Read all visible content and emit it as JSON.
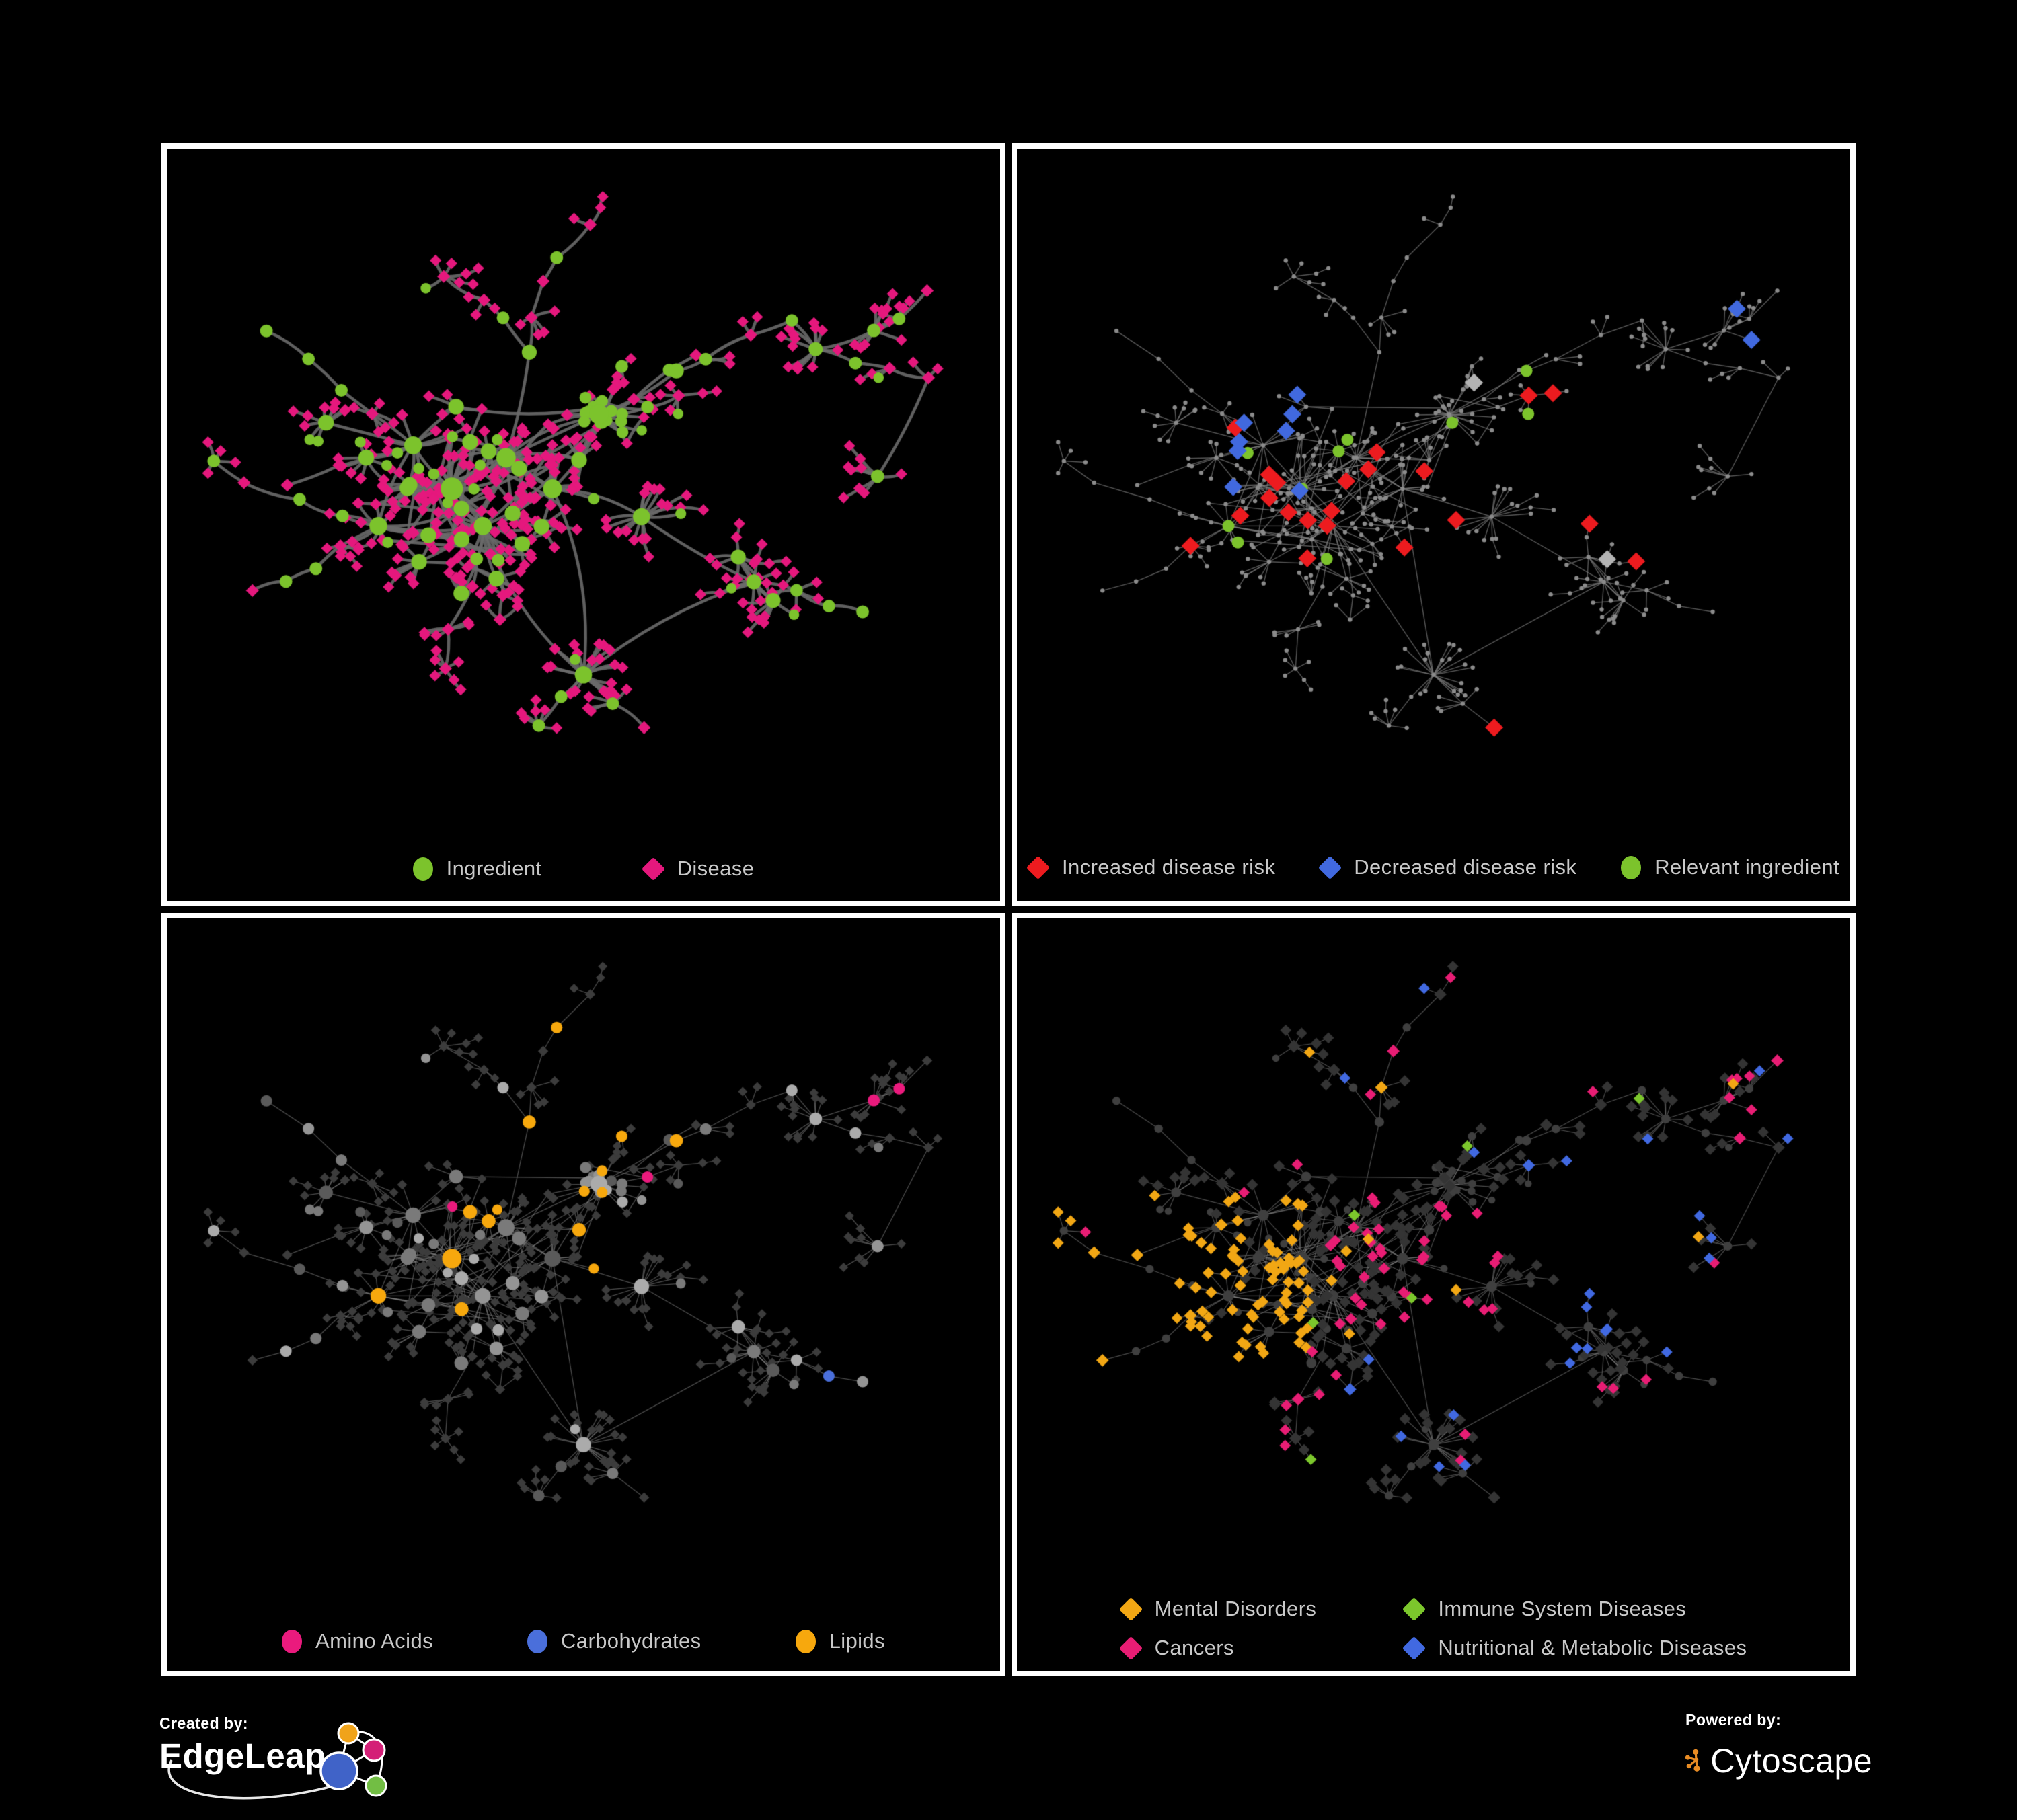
{
  "panels": [
    {
      "id": "ingredient-disease",
      "legend": [
        {
          "label": "Ingredient",
          "shape": "circle",
          "color": "#7cc32c"
        },
        {
          "label": "Disease",
          "shape": "diamond",
          "color": "#e5187d"
        }
      ]
    },
    {
      "id": "disease-risk",
      "legend": [
        {
          "label": "Increased disease risk",
          "shape": "diamond",
          "color": "#ed1b1f"
        },
        {
          "label": "Decreased disease risk",
          "shape": "diamond",
          "color": "#4169df"
        },
        {
          "label": "Relevant ingredient",
          "shape": "circle",
          "color": "#7cc32c"
        }
      ]
    },
    {
      "id": "nutrient-classes",
      "legend": [
        {
          "label": "Amino Acids",
          "shape": "circle",
          "color": "#ea1a7d"
        },
        {
          "label": "Carbohydrates",
          "shape": "circle",
          "color": "#4a6fdb"
        },
        {
          "label": "Lipids",
          "shape": "circle",
          "color": "#f7a80d"
        }
      ]
    },
    {
      "id": "disease-classes",
      "legend": [
        {
          "label": "Mental Disorders",
          "shape": "diamond",
          "color": "#f2a714"
        },
        {
          "label": "Immune System Diseases",
          "shape": "diamond",
          "color": "#7cc72c"
        },
        {
          "label": "Cancers",
          "shape": "diamond",
          "color": "#e81d74"
        },
        {
          "label": "Nutritional & Metabolic Diseases",
          "shape": "diamond",
          "color": "#4169e1"
        }
      ]
    }
  ],
  "footer": {
    "created_by": "Created by:",
    "brand_left": "EdgeLeap",
    "powered_by": "Powered by:",
    "brand_right": "Cytoscape"
  },
  "networks": {
    "type": "network",
    "description": "Same bipartite ingredient-disease association network shown four times with different node stylings: (1) node type, (2) disease-risk evidence highlights, (3) ingredient chemical classes, (4) disease classes.",
    "node_kinds": [
      "ingredient",
      "disease"
    ],
    "layout_seed": 7
  },
  "style": {
    "background": "#000000",
    "panel_border": "#ffffff",
    "legend_text": "#c9c9c9",
    "edges": [
      {
        "color": "#6a6a6a",
        "width": 4.5,
        "alpha": 0.9,
        "curved": true
      },
      {
        "color": "#7e7e7e",
        "width": 1.4,
        "alpha": 0.7,
        "curved": false
      },
      {
        "color": "#8a8a8a",
        "width": 1.3,
        "alpha": 0.55,
        "curved": false
      },
      {
        "color": "#8a8a8a",
        "width": 1.2,
        "alpha": 0.55,
        "curved": false
      }
    ],
    "grays": {
      "p2_node": "#8b8b8b",
      "p2_gray_diamond": "#b3b3b3",
      "p3_dark_diamond": "#3c3c3c",
      "p3_circle_shades": [
        "#ababab",
        "#949494",
        "#7a7a7a",
        "#5a5a5a"
      ],
      "p4_dark_diamond": "#343434",
      "p4_dark_circle": "#3f3f3f"
    },
    "logo_left_nodes": {
      "orange": "#f0a31a",
      "pink": "#d41f77",
      "blue": "#4063c8",
      "green": "#72be44"
    },
    "logo_right_color": "#e98c24"
  }
}
